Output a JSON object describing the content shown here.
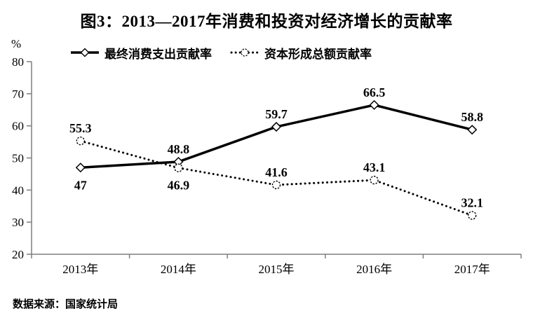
{
  "chart_data": {
    "type": "line",
    "title": "图3：2013—2017年消费和投资对经济增长的贡献率",
    "unit_label": "%",
    "source_note": "数据来源：国家统计局",
    "categories": [
      "2013年",
      "2014年",
      "2015年",
      "2016年",
      "2017年"
    ],
    "series": [
      {
        "name": "最终消费支出贡献率",
        "marker": "diamond",
        "line_style": "solid",
        "values": [
          47,
          48.8,
          59.7,
          66.5,
          58.8
        ],
        "label_side": [
          "below",
          "above",
          "above",
          "above",
          "above"
        ]
      },
      {
        "name": "资本形成总额贡献率",
        "marker": "circle",
        "line_style": "dotted",
        "values": [
          55.3,
          46.9,
          41.6,
          43.1,
          32.1
        ],
        "label_side": [
          "above",
          "below",
          "above",
          "above",
          "above"
        ]
      }
    ],
    "ylim": [
      20,
      80
    ],
    "ytick_step": 10,
    "yticks": [
      20,
      30,
      40,
      50,
      60,
      70,
      80
    ],
    "legend_position": "top",
    "grid": false,
    "colors": {
      "series": "#000000",
      "axis": "#7f7f7f",
      "text": "#000000",
      "marker_fill": "#ffffff",
      "background": "#ffffff"
    }
  }
}
